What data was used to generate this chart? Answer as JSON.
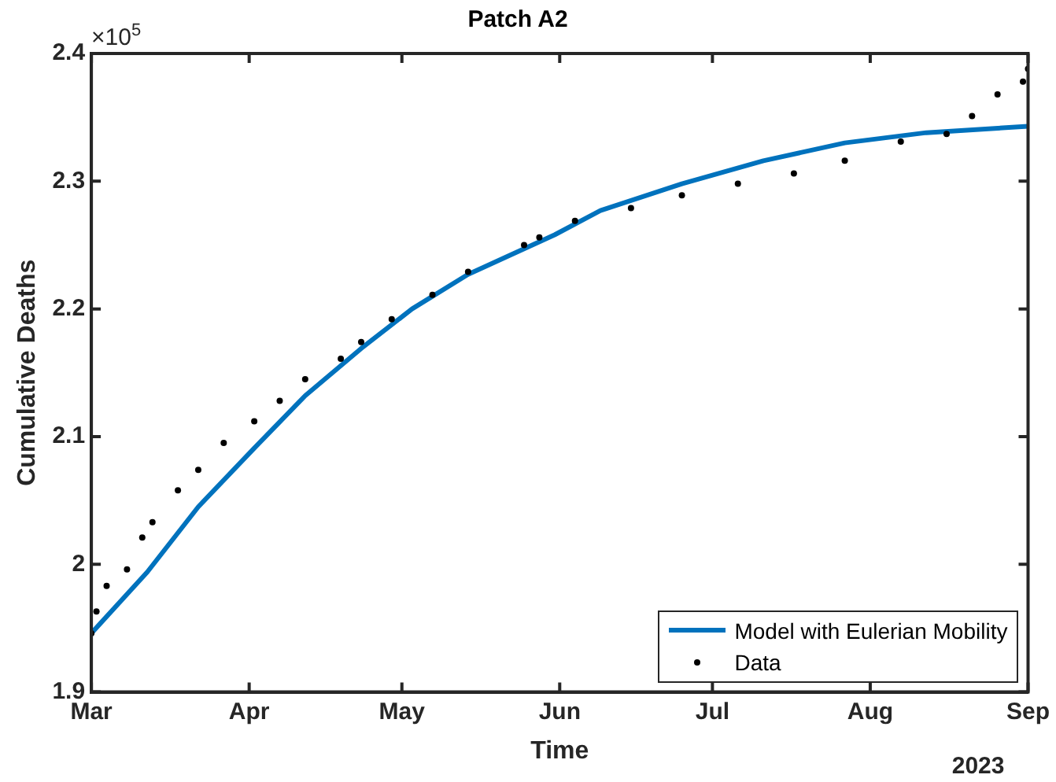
{
  "chart_data": {
    "type": "line",
    "title": "Patch A2",
    "xlabel": "Time",
    "ylabel": "Cumulative Deaths",
    "xlim": [
      "2023-03-01",
      "2023-09-01"
    ],
    "xticks": [
      {
        "value": "2023-03-01",
        "label": "Mar"
      },
      {
        "value": "2023-04-01",
        "label": "Apr"
      },
      {
        "value": "2023-05-01",
        "label": "May"
      },
      {
        "value": "2023-06-01",
        "label": "Jun"
      },
      {
        "value": "2023-07-01",
        "label": "Jul"
      },
      {
        "value": "2023-08-01",
        "label": "Aug"
      },
      {
        "value": "2023-09-01",
        "label": "Sep"
      }
    ],
    "ylim": [
      1.9,
      2.4
    ],
    "yticks": [
      1.9,
      2,
      2.1,
      2.2,
      2.3,
      2.4
    ],
    "annotations": [
      "×10$^{5}$",
      "2023"
    ],
    "legend": "bottom right",
    "grid": false,
    "series": [
      {
        "name": "Model with Eulerian Mobility",
        "type": "line",
        "color": "#0072bd",
        "marker": "none",
        "line_style": "solid",
        "x": [
          "2023-03-01",
          "2023-03-12",
          "2023-03-22",
          "2023-04-02",
          "2023-04-12",
          "2023-04-23",
          "2023-05-03",
          "2023-05-14",
          "2023-05-31",
          "2023-06-09",
          "2023-06-25",
          "2023-07-11",
          "2023-07-27",
          "2023-08-12",
          "2023-09-01"
        ],
        "values": [
          1.946,
          1.994,
          2.045,
          2.091,
          2.132,
          2.169,
          2.2,
          2.227,
          2.258,
          2.277,
          2.298,
          2.316,
          2.33,
          2.338,
          2.343
        ]
      },
      {
        "name": "Data",
        "type": "scatter",
        "color": "#000000",
        "marker": "circle",
        "x": [
          "2023-03-01",
          "2023-03-02",
          "2023-03-04",
          "2023-03-08",
          "2023-03-11",
          "2023-03-13",
          "2023-03-18",
          "2023-03-22",
          "2023-03-27",
          "2023-04-02",
          "2023-04-07",
          "2023-04-12",
          "2023-04-19",
          "2023-04-23",
          "2023-04-29",
          "2023-05-07",
          "2023-05-14",
          "2023-05-25",
          "2023-05-28",
          "2023-06-04",
          "2023-06-15",
          "2023-06-25",
          "2023-07-06",
          "2023-07-17",
          "2023-07-27",
          "2023-08-07",
          "2023-08-16",
          "2023-08-21",
          "2023-08-26",
          "2023-08-31",
          "2023-09-01"
        ],
        "values": [
          1.946,
          1.963,
          1.983,
          1.996,
          2.021,
          2.033,
          2.058,
          2.074,
          2.095,
          2.112,
          2.128,
          2.145,
          2.161,
          2.174,
          2.192,
          2.211,
          2.229,
          2.25,
          2.256,
          2.269,
          2.279,
          2.289,
          2.298,
          2.306,
          2.316,
          2.331,
          2.337,
          2.351,
          2.368,
          2.378,
          2.388
        ]
      }
    ]
  }
}
